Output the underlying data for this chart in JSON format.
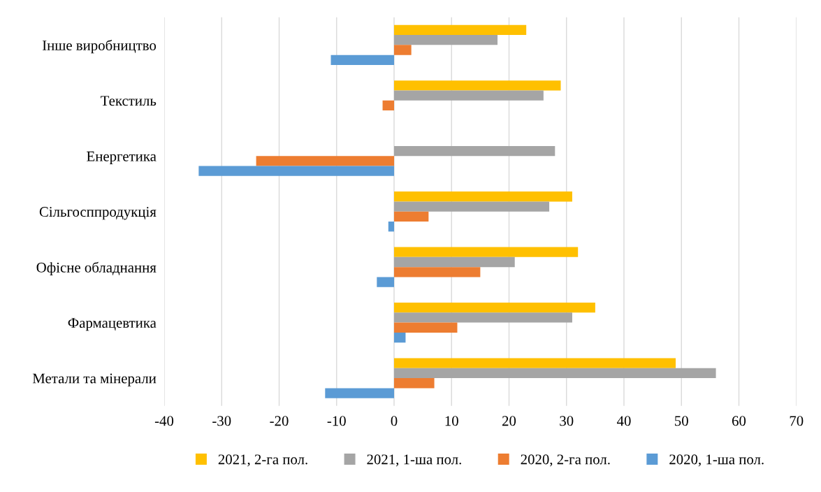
{
  "chart_data": {
    "type": "bar",
    "orientation": "horizontal",
    "categories": [
      "Інше виробництво",
      "Текстиль",
      "Енергетика",
      "Сільгосппродукція",
      "Офісне обладнання",
      "Фармацевтика",
      "Метали та мінерали"
    ],
    "series": [
      {
        "name": "2021, 2-га пол.",
        "color": "#ffc000",
        "values": [
          23,
          29,
          null,
          31,
          32,
          35,
          49
        ]
      },
      {
        "name": "2021, 1-ша пол.",
        "color": "#a5a5a5",
        "values": [
          18,
          26,
          28,
          27,
          21,
          31,
          56
        ]
      },
      {
        "name": "2020, 2-га пол.",
        "color": "#ed7d31",
        "values": [
          3,
          -2,
          -24,
          6,
          15,
          11,
          7
        ]
      },
      {
        "name": "2020, 1-ша пол.",
        "color": "#5b9bd5",
        "values": [
          -11,
          null,
          -34,
          -1,
          -3,
          2,
          -12
        ]
      }
    ],
    "xlim": [
      -40,
      70
    ],
    "xticks": [
      -40,
      -30,
      -20,
      -10,
      0,
      10,
      20,
      30,
      40,
      50,
      60,
      70
    ],
    "grid": "x",
    "legend": "bottom"
  }
}
